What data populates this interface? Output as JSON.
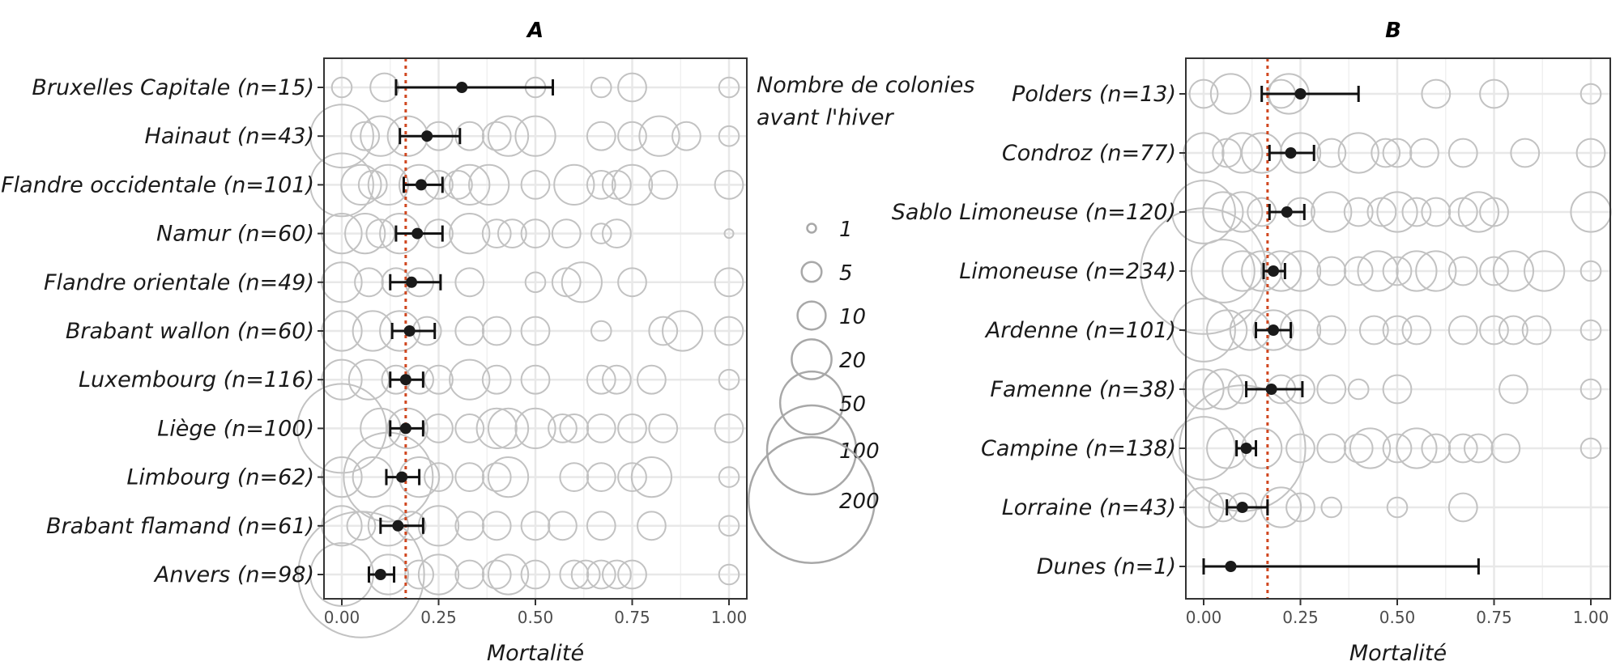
{
  "chart_data": [
    {
      "type": "scatter",
      "title": "A",
      "xlabel": "Mortalité",
      "xlim": [
        0,
        1
      ],
      "x_ticks": [
        0,
        0.25,
        0.5,
        0.75,
        1
      ],
      "x_tick_labels": [
        "0.00",
        "0.25",
        "0.50",
        "0.75",
        "1.00"
      ],
      "reference_line": 0.165,
      "reference_color": "#d0471f",
      "categories": [
        "Bruxelles Capitale (n=15)",
        "Hainaut (n=43)",
        "Flandre occidentale (n=101)",
        "Namur (n=60)",
        "Flandre orientale (n=49)",
        "Brabant wallon (n=60)",
        "Luxembourg (n=116)",
        "Liège (n=100)",
        "Limbourg (n=62)",
        "Brabant flamand (n=61)",
        "Anvers (n=98)"
      ],
      "estimates": [
        {
          "mean": 0.31,
          "lower": 0.14,
          "upper": 0.545
        },
        {
          "mean": 0.22,
          "lower": 0.15,
          "upper": 0.305
        },
        {
          "mean": 0.205,
          "lower": 0.16,
          "upper": 0.26
        },
        {
          "mean": 0.195,
          "lower": 0.14,
          "upper": 0.26
        },
        {
          "mean": 0.18,
          "lower": 0.125,
          "upper": 0.255
        },
        {
          "mean": 0.175,
          "lower": 0.13,
          "upper": 0.24
        },
        {
          "mean": 0.165,
          "lower": 0.125,
          "upper": 0.21
        },
        {
          "mean": 0.165,
          "lower": 0.125,
          "upper": 0.21
        },
        {
          "mean": 0.155,
          "lower": 0.115,
          "upper": 0.2
        },
        {
          "mean": 0.145,
          "lower": 0.1,
          "upper": 0.21
        },
        {
          "mean": 0.1,
          "lower": 0.07,
          "upper": 0.135
        }
      ],
      "observations": [
        [
          [
            0,
            5
          ],
          [
            0.11,
            10
          ],
          [
            0.5,
            5
          ],
          [
            0.67,
            5
          ],
          [
            0.75,
            10
          ],
          [
            1,
            5
          ]
        ],
        [
          [
            0,
            50
          ],
          [
            0.06,
            10
          ],
          [
            0.1,
            20
          ],
          [
            0.17,
            20
          ],
          [
            0.25,
            10
          ],
          [
            0.33,
            10
          ],
          [
            0.4,
            10
          ],
          [
            0.43,
            20
          ],
          [
            0.5,
            20
          ],
          [
            0.67,
            10
          ],
          [
            0.75,
            10
          ],
          [
            0.82,
            20
          ],
          [
            0.89,
            10
          ],
          [
            1,
            5
          ]
        ],
        [
          [
            0,
            50
          ],
          [
            0.05,
            20
          ],
          [
            0.08,
            10
          ],
          [
            0.12,
            20
          ],
          [
            0.2,
            20
          ],
          [
            0.25,
            10
          ],
          [
            0.3,
            10
          ],
          [
            0.33,
            20
          ],
          [
            0.38,
            20
          ],
          [
            0.5,
            10
          ],
          [
            0.6,
            20
          ],
          [
            0.67,
            10
          ],
          [
            0.71,
            10
          ],
          [
            0.75,
            20
          ],
          [
            0.83,
            10
          ],
          [
            1,
            10
          ]
        ],
        [
          [
            0,
            20
          ],
          [
            0.06,
            20
          ],
          [
            0.1,
            10
          ],
          [
            0.15,
            20
          ],
          [
            0.25,
            10
          ],
          [
            0.33,
            20
          ],
          [
            0.4,
            10
          ],
          [
            0.44,
            10
          ],
          [
            0.5,
            10
          ],
          [
            0.58,
            10
          ],
          [
            0.67,
            5
          ],
          [
            0.71,
            10
          ],
          [
            1,
            1
          ]
        ],
        [
          [
            0,
            20
          ],
          [
            0.07,
            10
          ],
          [
            0.14,
            10
          ],
          [
            0.2,
            10
          ],
          [
            0.33,
            10
          ],
          [
            0.5,
            5
          ],
          [
            0.58,
            10
          ],
          [
            0.62,
            20
          ],
          [
            0.75,
            10
          ],
          [
            1,
            10
          ]
        ],
        [
          [
            0,
            20
          ],
          [
            0.08,
            20
          ],
          [
            0.15,
            20
          ],
          [
            0.22,
            10
          ],
          [
            0.33,
            10
          ],
          [
            0.4,
            10
          ],
          [
            0.5,
            10
          ],
          [
            0.67,
            5
          ],
          [
            0.83,
            10
          ],
          [
            0.88,
            20
          ],
          [
            1,
            10
          ]
        ],
        [
          [
            0,
            20
          ],
          [
            0.07,
            20
          ],
          [
            0.14,
            10
          ],
          [
            0.2,
            10
          ],
          [
            0.25,
            10
          ],
          [
            0.33,
            20
          ],
          [
            0.4,
            10
          ],
          [
            0.5,
            10
          ],
          [
            0.67,
            10
          ],
          [
            0.71,
            10
          ],
          [
            0.8,
            10
          ],
          [
            1,
            5
          ]
        ],
        [
          [
            0,
            100
          ],
          [
            0.1,
            20
          ],
          [
            0.17,
            20
          ],
          [
            0.25,
            10
          ],
          [
            0.33,
            10
          ],
          [
            0.4,
            20
          ],
          [
            0.43,
            20
          ],
          [
            0.5,
            20
          ],
          [
            0.57,
            10
          ],
          [
            0.6,
            10
          ],
          [
            0.67,
            10
          ],
          [
            0.75,
            10
          ],
          [
            0.83,
            10
          ],
          [
            1,
            10
          ]
        ],
        [
          [
            0,
            20
          ],
          [
            0.08,
            20
          ],
          [
            0.12,
            100
          ],
          [
            0.2,
            20
          ],
          [
            0.25,
            10
          ],
          [
            0.33,
            10
          ],
          [
            0.4,
            10
          ],
          [
            0.43,
            20
          ],
          [
            0.6,
            10
          ],
          [
            0.67,
            10
          ],
          [
            0.75,
            10
          ],
          [
            0.8,
            20
          ],
          [
            1,
            5
          ]
        ],
        [
          [
            0,
            20
          ],
          [
            0.05,
            10
          ],
          [
            0.12,
            20
          ],
          [
            0.18,
            10
          ],
          [
            0.25,
            20
          ],
          [
            0.33,
            10
          ],
          [
            0.4,
            10
          ],
          [
            0.5,
            10
          ],
          [
            0.57,
            10
          ],
          [
            0.67,
            10
          ],
          [
            0.8,
            10
          ],
          [
            1,
            5
          ]
        ],
        [
          [
            0,
            50
          ],
          [
            0.05,
            200
          ],
          [
            0.12,
            20
          ],
          [
            0.2,
            10
          ],
          [
            0.25,
            20
          ],
          [
            0.33,
            10
          ],
          [
            0.4,
            10
          ],
          [
            0.43,
            20
          ],
          [
            0.5,
            10
          ],
          [
            0.6,
            10
          ],
          [
            0.63,
            10
          ],
          [
            0.67,
            10
          ],
          [
            0.71,
            10
          ],
          [
            0.75,
            10
          ],
          [
            1,
            5
          ]
        ]
      ]
    },
    {
      "type": "scatter",
      "title": "B",
      "xlabel": "Mortalité",
      "xlim": [
        0,
        1
      ],
      "x_ticks": [
        0,
        0.25,
        0.5,
        0.75,
        1
      ],
      "x_tick_labels": [
        "0.00",
        "0.25",
        "0.50",
        "0.75",
        "1.00"
      ],
      "reference_line": 0.165,
      "reference_color": "#d0471f",
      "categories": [
        "Polders (n=13)",
        "Condroz (n=77)",
        "Sablo Limoneuse (n=120)",
        "Limoneuse (n=234)",
        "Ardenne (n=101)",
        "Famenne (n=38)",
        "Campine (n=138)",
        "Lorraine (n=43)",
        "Dunes (n=1)"
      ],
      "estimates": [
        {
          "mean": 0.25,
          "lower": 0.15,
          "upper": 0.4
        },
        {
          "mean": 0.225,
          "lower": 0.17,
          "upper": 0.285
        },
        {
          "mean": 0.215,
          "lower": 0.17,
          "upper": 0.26
        },
        {
          "mean": 0.18,
          "lower": 0.155,
          "upper": 0.21
        },
        {
          "mean": 0.18,
          "lower": 0.135,
          "upper": 0.225
        },
        {
          "mean": 0.175,
          "lower": 0.11,
          "upper": 0.255
        },
        {
          "mean": 0.11,
          "lower": 0.085,
          "upper": 0.135
        },
        {
          "mean": 0.1,
          "lower": 0.06,
          "upper": 0.165
        },
        {
          "mean": 0.07,
          "lower": 0,
          "upper": 0.71
        }
      ],
      "observations": [
        [
          [
            0,
            10
          ],
          [
            0.07,
            20
          ],
          [
            0.2,
            10
          ],
          [
            0.22,
            20
          ],
          [
            0.6,
            10
          ],
          [
            0.75,
            10
          ],
          [
            1,
            5
          ]
        ],
        [
          [
            0,
            20
          ],
          [
            0.06,
            10
          ],
          [
            0.1,
            20
          ],
          [
            0.15,
            20
          ],
          [
            0.25,
            20
          ],
          [
            0.33,
            10
          ],
          [
            0.4,
            20
          ],
          [
            0.47,
            10
          ],
          [
            0.5,
            10
          ],
          [
            0.57,
            10
          ],
          [
            0.67,
            10
          ],
          [
            0.83,
            10
          ],
          [
            1,
            10
          ]
        ],
        [
          [
            0,
            50
          ],
          [
            0.05,
            20
          ],
          [
            0.1,
            20
          ],
          [
            0.15,
            10
          ],
          [
            0.25,
            10
          ],
          [
            0.33,
            20
          ],
          [
            0.4,
            10
          ],
          [
            0.46,
            10
          ],
          [
            0.5,
            20
          ],
          [
            0.55,
            10
          ],
          [
            0.6,
            10
          ],
          [
            0.67,
            10
          ],
          [
            0.71,
            20
          ],
          [
            0.75,
            10
          ],
          [
            1,
            20
          ]
        ],
        [
          [
            0,
            200
          ],
          [
            0.05,
            50
          ],
          [
            0.1,
            20
          ],
          [
            0.15,
            20
          ],
          [
            0.2,
            20
          ],
          [
            0.25,
            20
          ],
          [
            0.33,
            10
          ],
          [
            0.4,
            10
          ],
          [
            0.45,
            20
          ],
          [
            0.5,
            10
          ],
          [
            0.55,
            20
          ],
          [
            0.6,
            20
          ],
          [
            0.67,
            10
          ],
          [
            0.75,
            10
          ],
          [
            0.8,
            20
          ],
          [
            0.88,
            20
          ],
          [
            1,
            5
          ]
        ],
        [
          [
            0,
            50
          ],
          [
            0.06,
            20
          ],
          [
            0.12,
            20
          ],
          [
            0.18,
            20
          ],
          [
            0.25,
            20
          ],
          [
            0.33,
            10
          ],
          [
            0.44,
            10
          ],
          [
            0.5,
            10
          ],
          [
            0.55,
            10
          ],
          [
            0.67,
            10
          ],
          [
            0.75,
            10
          ],
          [
            0.8,
            10
          ],
          [
            0.86,
            10
          ],
          [
            1,
            5
          ]
        ],
        [
          [
            0,
            20
          ],
          [
            0.05,
            20
          ],
          [
            0.1,
            10
          ],
          [
            0.2,
            10
          ],
          [
            0.25,
            10
          ],
          [
            0.33,
            10
          ],
          [
            0.4,
            5
          ],
          [
            0.5,
            10
          ],
          [
            0.8,
            10
          ],
          [
            1,
            5
          ]
        ],
        [
          [
            0,
            50
          ],
          [
            0.06,
            20
          ],
          [
            0.1,
            200
          ],
          [
            0.15,
            20
          ],
          [
            0.25,
            10
          ],
          [
            0.33,
            10
          ],
          [
            0.4,
            10
          ],
          [
            0.43,
            20
          ],
          [
            0.5,
            10
          ],
          [
            0.55,
            20
          ],
          [
            0.6,
            10
          ],
          [
            0.67,
            10
          ],
          [
            0.71,
            10
          ],
          [
            0.78,
            10
          ],
          [
            1,
            5
          ]
        ],
        [
          [
            0,
            20
          ],
          [
            0.05,
            10
          ],
          [
            0.1,
            10
          ],
          [
            0.2,
            20
          ],
          [
            0.25,
            10
          ],
          [
            0.33,
            5
          ],
          [
            0.5,
            5
          ],
          [
            0.67,
            10
          ]
        ],
        []
      ]
    }
  ],
  "legend": {
    "title_lines": [
      "Nombre de colonies",
      "avant l'hiver"
    ],
    "sizes": [
      1,
      5,
      10,
      20,
      50,
      100,
      200
    ],
    "labels": [
      "1",
      "5",
      "10",
      "20",
      "50",
      "100",
      "200"
    ]
  }
}
